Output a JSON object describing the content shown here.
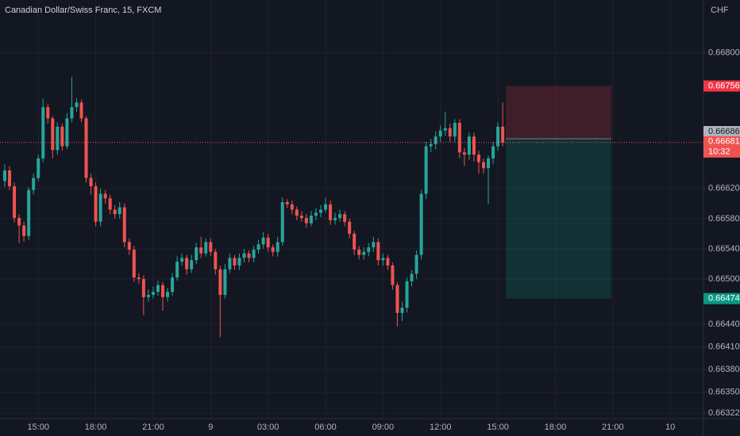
{
  "chart_data": {
    "type": "candlestick",
    "title": "Canadian Dollar/Swiss Franc, 15, FXCM",
    "currency": "CHF",
    "up_color": "#26a69a",
    "down_color": "#ef5350",
    "ylim": [
      0.66315,
      0.6687
    ],
    "yticks": [
      {
        "value": 0.668,
        "label": "0.66800"
      },
      {
        "value": 0.6662,
        "label": "0.66620"
      },
      {
        "value": 0.6658,
        "label": "0.66580"
      },
      {
        "value": 0.6654,
        "label": "0.66540"
      },
      {
        "value": 0.665,
        "label": "0.66500"
      },
      {
        "value": 0.6644,
        "label": "0.66440"
      },
      {
        "value": 0.6641,
        "label": "0.66410"
      },
      {
        "value": 0.6638,
        "label": "0.66380"
      },
      {
        "value": 0.6635,
        "label": "0.66350"
      },
      0.66322
    ],
    "xtick_labels": [
      "15:00",
      "18:00",
      "21:00",
      "9",
      "03:00",
      "06:00",
      "09:00",
      "12:00",
      "15:00",
      "18:00",
      "21:00",
      "10"
    ],
    "grid": true,
    "current_price": 0.66681,
    "countdown": "10:32",
    "position": {
      "stop": 0.66756,
      "entry": 0.66686,
      "target": 0.66474
    },
    "open": [
      0.6663,
      0.66644,
      0.66623,
      0.66581,
      0.66571,
      0.66557,
      0.66618,
      0.66634,
      0.6666,
      0.66728,
      0.66713,
      0.66671,
      0.66702,
      0.66676,
      0.66713,
      0.66728,
      0.66734,
      0.66713,
      0.66634,
      0.66623,
      0.66576,
      0.66613,
      0.66607,
      0.66592,
      0.66586,
      0.66595,
      0.66549,
      0.66539,
      0.66502,
      0.665,
      0.66476,
      0.66479,
      0.66483,
      0.66492,
      0.66476,
      0.66483,
      0.66502,
      0.66523,
      0.66528,
      0.66513,
      0.66525,
      0.66542,
      0.66534,
      0.66549,
      0.66536,
      0.66513,
      0.66479,
      0.66513,
      0.66528,
      0.66518,
      0.66528,
      0.66534,
      0.66528,
      0.66539,
      0.66546,
      0.66555,
      0.66542,
      0.66536,
      0.66549,
      0.66602,
      0.66599,
      0.66592,
      0.66584,
      0.66581,
      0.66574,
      0.66584,
      0.66588,
      0.66592,
      0.66599,
      0.66578,
      0.66581,
      0.66586,
      0.66576,
      0.6656,
      0.66539,
      0.66532,
      0.66536,
      0.66542,
      0.66549,
      0.66525,
      0.66528,
      0.66518,
      0.66492,
      0.66455,
      0.66462,
      0.66497,
      0.66507,
      0.66532,
      0.66613,
      0.66676,
      0.66679,
      0.66689,
      0.66697,
      0.667,
      0.66689,
      0.66707,
      0.66668,
      0.66665,
      0.66689,
      0.66665,
      0.66655,
      0.66647,
      0.6666,
      0.66676,
      0.66702
    ],
    "high": [
      0.66652,
      0.6665,
      0.66628,
      0.66586,
      0.66576,
      0.66622,
      0.6664,
      0.66665,
      0.66739,
      0.66732,
      0.66716,
      0.66708,
      0.66706,
      0.6672,
      0.66768,
      0.6674,
      0.66738,
      0.66716,
      0.6664,
      0.66628,
      0.6662,
      0.66618,
      0.66612,
      0.66598,
      0.66602,
      0.666,
      0.66554,
      0.66544,
      0.66508,
      0.66505,
      0.66486,
      0.6649,
      0.66498,
      0.66496,
      0.66488,
      0.66508,
      0.6653,
      0.66534,
      0.66532,
      0.66532,
      0.66548,
      0.66556,
      0.66554,
      0.66554,
      0.6654,
      0.66518,
      0.6652,
      0.66534,
      0.66532,
      0.66534,
      0.6654,
      0.66538,
      0.66544,
      0.66552,
      0.66562,
      0.6656,
      0.66546,
      0.66556,
      0.66608,
      0.66606,
      0.66604,
      0.66596,
      0.6659,
      0.66586,
      0.6659,
      0.66594,
      0.66598,
      0.66608,
      0.66604,
      0.66588,
      0.66592,
      0.6659,
      0.6658,
      0.66564,
      0.66544,
      0.66542,
      0.66548,
      0.66556,
      0.66554,
      0.66534,
      0.66532,
      0.66522,
      0.66496,
      0.6647,
      0.66502,
      0.66512,
      0.66538,
      0.66618,
      0.66682,
      0.66686,
      0.66696,
      0.66704,
      0.66722,
      0.66706,
      0.66712,
      0.66712,
      0.66674,
      0.66694,
      0.66694,
      0.6667,
      0.6666,
      0.66664,
      0.66682,
      0.66708,
      0.66734
    ],
    "low": [
      0.66622,
      0.66618,
      0.66575,
      0.66548,
      0.6655,
      0.66552,
      0.66612,
      0.6663,
      0.66655,
      0.66706,
      0.6666,
      0.66665,
      0.6667,
      0.66672,
      0.66708,
      0.66722,
      0.66708,
      0.66628,
      0.66612,
      0.6657,
      0.6657,
      0.666,
      0.66586,
      0.6658,
      0.6658,
      0.66542,
      0.66532,
      0.66496,
      0.66494,
      0.66452,
      0.6647,
      0.66474,
      0.66478,
      0.66458,
      0.6647,
      0.66478,
      0.66498,
      0.66518,
      0.66506,
      0.66508,
      0.6652,
      0.66528,
      0.6653,
      0.6653,
      0.66506,
      0.66423,
      0.66474,
      0.66508,
      0.66512,
      0.66512,
      0.66522,
      0.66522,
      0.66522,
      0.66534,
      0.6654,
      0.66536,
      0.6653,
      0.6653,
      0.66544,
      0.66594,
      0.66586,
      0.66578,
      0.66576,
      0.66568,
      0.6657,
      0.66578,
      0.66582,
      0.66588,
      0.66572,
      0.66572,
      0.66576,
      0.6657,
      0.66554,
      0.66532,
      0.66526,
      0.66526,
      0.6653,
      0.66536,
      0.66518,
      0.66518,
      0.66512,
      0.66486,
      0.66437,
      0.66444,
      0.66456,
      0.6649,
      0.665,
      0.66526,
      0.66606,
      0.66668,
      0.66672,
      0.66682,
      0.6669,
      0.66682,
      0.66682,
      0.6666,
      0.6665,
      0.66658,
      0.66656,
      0.6664,
      0.6664,
      0.66599,
      0.66652,
      0.6667,
      0.66676
    ],
    "close": [
      0.66644,
      0.66623,
      0.66581,
      0.66571,
      0.66557,
      0.66618,
      0.66634,
      0.6666,
      0.66728,
      0.66713,
      0.66671,
      0.66702,
      0.66676,
      0.66713,
      0.66728,
      0.66734,
      0.66713,
      0.66634,
      0.66623,
      0.66576,
      0.66613,
      0.66607,
      0.66592,
      0.66586,
      0.66595,
      0.66549,
      0.66539,
      0.66502,
      0.665,
      0.66476,
      0.66479,
      0.66483,
      0.66492,
      0.66476,
      0.66483,
      0.66502,
      0.66523,
      0.66528,
      0.66513,
      0.66525,
      0.66542,
      0.66534,
      0.66549,
      0.66536,
      0.66513,
      0.66479,
      0.66513,
      0.66528,
      0.66518,
      0.66528,
      0.66534,
      0.66528,
      0.66539,
      0.66546,
      0.66555,
      0.66542,
      0.66536,
      0.66549,
      0.66602,
      0.66599,
      0.66592,
      0.66584,
      0.66581,
      0.66574,
      0.66584,
      0.66588,
      0.66592,
      0.66599,
      0.66578,
      0.66581,
      0.66586,
      0.66576,
      0.6656,
      0.66539,
      0.66532,
      0.66536,
      0.66542,
      0.66549,
      0.66525,
      0.66528,
      0.66518,
      0.66492,
      0.66455,
      0.66462,
      0.66497,
      0.66507,
      0.66532,
      0.66613,
      0.66676,
      0.66679,
      0.66689,
      0.66697,
      0.667,
      0.66689,
      0.66707,
      0.66668,
      0.66665,
      0.66689,
      0.66665,
      0.66655,
      0.66647,
      0.6666,
      0.66676,
      0.66702,
      0.66681
    ]
  }
}
